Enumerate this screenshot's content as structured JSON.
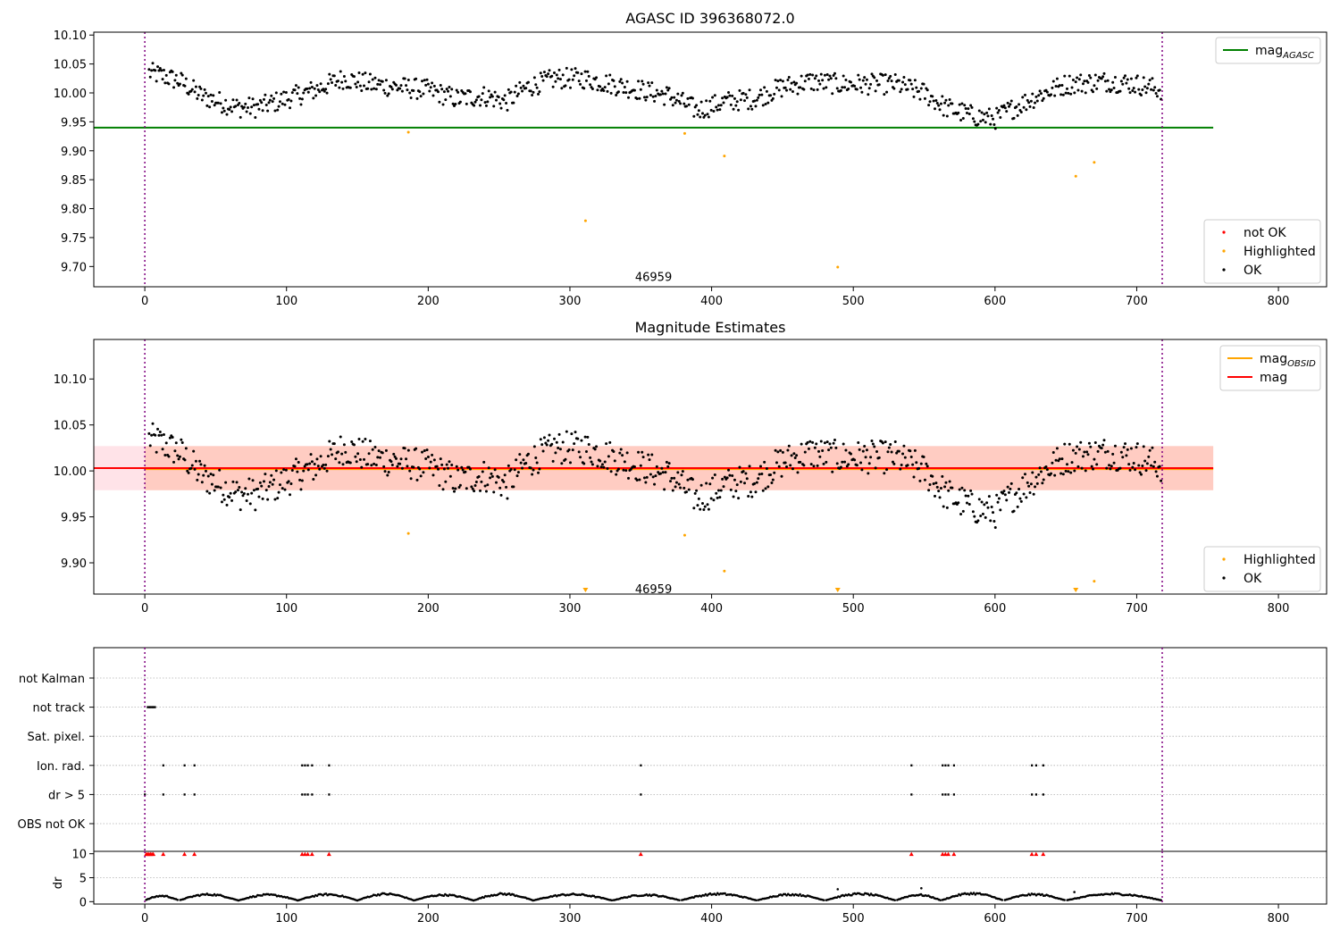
{
  "chart_data": [
    {
      "type": "scatter",
      "title": "AGASC ID 396368072.0",
      "xlim": [
        -36,
        834
      ],
      "ylim": [
        9.665,
        10.105
      ],
      "x_ticks": [
        0,
        100,
        200,
        300,
        400,
        500,
        600,
        700,
        800
      ],
      "y_ticks": [
        9.7,
        9.75,
        9.8,
        9.85,
        9.9,
        9.95,
        10.0,
        10.05,
        10.1
      ],
      "y_tick_labels": [
        "9.70",
        "9.75",
        "9.80",
        "9.85",
        "9.90",
        "9.95",
        "10.00",
        "10.05",
        "10.10"
      ],
      "vlines": [
        0,
        718
      ],
      "hline": {
        "y": 9.94,
        "x": [
          -36,
          754
        ],
        "color": "#008000"
      },
      "annotation": {
        "text": "46959",
        "x": 359,
        "y": 9.683
      },
      "legend_top": [
        {
          "label": "mag",
          "sub": "AGASC",
          "kind": "line",
          "color": "#008000"
        }
      ],
      "legend_bottom": [
        {
          "label": "not OK",
          "kind": "dot",
          "color": "#ff0000"
        },
        {
          "label": "Highlighted",
          "kind": "dot",
          "color": "#ffa500"
        },
        {
          "label": "OK",
          "kind": "dot",
          "color": "#000000"
        }
      ],
      "series": [
        {
          "name": "Highlighted",
          "color": "#ffa500",
          "points": [
            [
              186,
              9.932
            ],
            [
              311,
              9.779
            ],
            [
              381,
              9.93
            ],
            [
              409,
              9.891
            ],
            [
              489,
              9.699
            ],
            [
              657,
              9.856
            ],
            [
              670,
              9.88
            ]
          ]
        }
      ],
      "ok_profile": {
        "color": "#000000",
        "knots": [
          [
            3,
            10.035
          ],
          [
            12,
            10.03
          ],
          [
            25,
            10.02
          ],
          [
            40,
            9.995
          ],
          [
            65,
            9.975
          ],
          [
            80,
            9.975
          ],
          [
            100,
            9.99
          ],
          [
            120,
            10.005
          ],
          [
            140,
            10.025
          ],
          [
            160,
            10.015
          ],
          [
            180,
            10.01
          ],
          [
            200,
            10.005
          ],
          [
            220,
            9.99
          ],
          [
            240,
            9.995
          ],
          [
            255,
            9.985
          ],
          [
            270,
            10.01
          ],
          [
            290,
            10.025
          ],
          [
            310,
            10.025
          ],
          [
            330,
            10.015
          ],
          [
            350,
            10.005
          ],
          [
            370,
            9.995
          ],
          [
            390,
            9.97
          ],
          [
            410,
            9.985
          ],
          [
            430,
            9.99
          ],
          [
            450,
            10.01
          ],
          [
            470,
            10.02
          ],
          [
            490,
            10.015
          ],
          [
            510,
            10.015
          ],
          [
            530,
            10.015
          ],
          [
            550,
            10.0
          ],
          [
            565,
            9.975
          ],
          [
            585,
            9.96
          ],
          [
            600,
            9.955
          ],
          [
            610,
            9.97
          ],
          [
            630,
            9.995
          ],
          [
            650,
            10.015
          ],
          [
            680,
            10.02
          ],
          [
            700,
            10.015
          ],
          [
            718,
            10.005
          ]
        ]
      }
    },
    {
      "type": "scatter",
      "title": "Magnitude Estimates",
      "xlim": [
        -36,
        834
      ],
      "ylim": [
        9.866,
        10.143
      ],
      "x_ticks": [
        0,
        100,
        200,
        300,
        400,
        500,
        600,
        700,
        800
      ],
      "y_ticks": [
        9.9,
        9.95,
        10.0,
        10.05,
        10.1
      ],
      "y_tick_labels": [
        "9.90",
        "9.95",
        "10.00",
        "10.05",
        "10.10"
      ],
      "vlines": [
        0,
        718
      ],
      "band": {
        "y": [
          9.979,
          10.027
        ],
        "x_wide": [
          -36,
          754
        ],
        "x_inner": [
          0,
          754
        ],
        "color_wide": "#ffc0cb",
        "color_inner": "#ffa07a"
      },
      "hlines": [
        {
          "y": 10.002,
          "x": [
            0,
            754
          ],
          "color": "#ffa500"
        },
        {
          "y": 10.003,
          "x": [
            -36,
            754
          ],
          "color": "#ff0000"
        }
      ],
      "annotation": {
        "text": "46959",
        "x": 359,
        "y": 9.872
      },
      "legend_top": [
        {
          "label": "mag",
          "sub": "OBSID",
          "kind": "line",
          "color": "#ffa500"
        },
        {
          "label": "mag",
          "kind": "line",
          "color": "#ff0000"
        }
      ],
      "legend_bottom": [
        {
          "label": "Highlighted",
          "kind": "dot",
          "color": "#ffa500"
        },
        {
          "label": "OK",
          "kind": "dot",
          "color": "#000000"
        }
      ],
      "series": [
        {
          "name": "Highlighted",
          "color": "#ffa500",
          "points": [
            [
              186,
              9.932
            ],
            [
              381,
              9.93
            ],
            [
              409,
              9.891
            ],
            [
              670,
              9.88
            ]
          ]
        }
      ],
      "off_scale_markers": {
        "color": "#ffa500",
        "x": [
          311,
          489,
          657
        ]
      }
    },
    {
      "type": "scatter",
      "xlim": [
        -36,
        834
      ],
      "x_ticks": [
        0,
        100,
        200,
        300,
        400,
        500,
        600,
        700,
        800
      ],
      "vlines": [
        0,
        718
      ],
      "flag_rows": [
        "not Kalman",
        "not track",
        "Sat. pixel.",
        "Ion. rad.",
        "dr > 5",
        "OBS not OK"
      ],
      "flags": {
        "not track": [
          2,
          4,
          6
        ],
        "Ion. rad.": [
          13,
          28,
          35,
          111,
          113,
          115,
          118,
          130,
          350,
          541,
          563,
          565,
          567,
          571,
          626,
          629,
          634
        ],
        "dr > 5": [
          0,
          13,
          28,
          35,
          111,
          113,
          115,
          118,
          130,
          350,
          541,
          563,
          565,
          567,
          571,
          626,
          629,
          634
        ]
      },
      "dr_axis": {
        "ylabel": "dr",
        "y_ticks": [
          0,
          5,
          10
        ],
        "ylim": [
          -0.5,
          10.5
        ]
      },
      "dr_high": {
        "color": "#ff0000",
        "y": 10,
        "x": [
          1,
          2,
          3,
          4,
          5,
          6,
          13,
          28,
          35,
          111,
          113,
          115,
          118,
          130,
          350,
          541,
          563,
          565,
          567,
          571,
          626,
          629,
          634
        ]
      },
      "dr_profile_periods": [
        [
          0,
          24,
          1.2
        ],
        [
          24,
          66,
          1.5
        ],
        [
          66,
          108,
          1.4
        ],
        [
          108,
          150,
          1.5
        ],
        [
          150,
          190,
          1.6
        ],
        [
          190,
          232,
          1.4
        ],
        [
          232,
          274,
          1.6
        ],
        [
          274,
          330,
          1.5
        ],
        [
          330,
          378,
          1.4
        ],
        [
          378,
          432,
          1.6
        ],
        [
          432,
          480,
          1.5
        ],
        [
          480,
          530,
          1.6
        ],
        [
          530,
          562,
          1.4
        ],
        [
          562,
          606,
          1.7
        ],
        [
          606,
          650,
          1.5
        ],
        [
          650,
          718,
          1.6
        ]
      ],
      "dr_spikes": [
        [
          489,
          2.6
        ],
        [
          548,
          2.8
        ],
        [
          656,
          2.0
        ]
      ]
    }
  ]
}
